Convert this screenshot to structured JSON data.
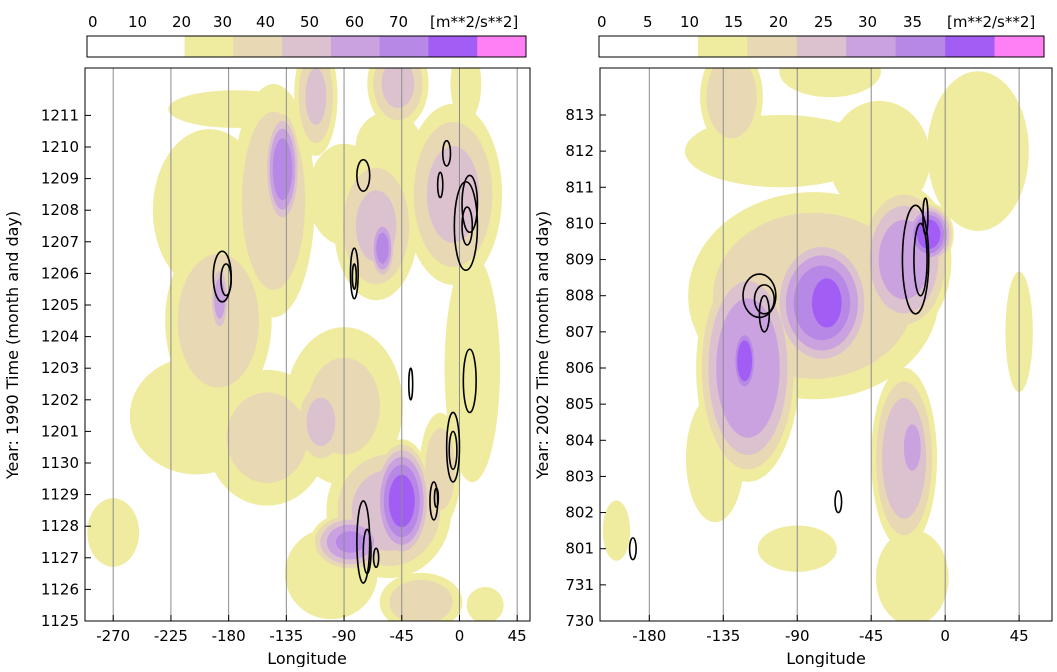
{
  "chart_data": [
    {
      "type": "heatmap",
      "title": "",
      "xlabel": "Longitude",
      "ylabel": "Year: 1990 Time (month and day)",
      "colorbar_unit": "[m**2/s**2]",
      "colorbar_ticks": [
        "0",
        "10",
        "20",
        "30",
        "40",
        "50",
        "60",
        "70"
      ],
      "colorbar_levels": [
        0,
        10,
        20,
        30,
        40,
        50,
        60,
        70,
        80
      ],
      "colors": [
        "#ffffff",
        "#ffffff",
        "#efeb9f",
        "#e9d8b4",
        "#dcc1cf",
        "#c9a2df",
        "#b888e7",
        "#a15df4",
        "#ff80f4"
      ],
      "x_ticks": [
        "-270",
        "-225",
        "-180",
        "-135",
        "-90",
        "-45",
        "0",
        "45"
      ],
      "x_tick_values": [
        -270,
        -225,
        -180,
        -135,
        -90,
        -45,
        0,
        45
      ],
      "xlim": [
        -292,
        55
      ],
      "y_ticks": [
        "1125",
        "1126",
        "1127",
        "1128",
        "1129",
        "1130",
        "1201",
        "1202",
        "1203",
        "1204",
        "1205",
        "1206",
        "1207",
        "1208",
        "1209",
        "1210",
        "1211"
      ],
      "ylim": [
        0,
        17.5
      ],
      "grid": "vertical lines at x ticks",
      "blobs": [
        {
          "x": -175,
          "y": 16.2,
          "rx": 70,
          "ry": 0.8,
          "v": 25
        },
        {
          "x": -195,
          "y": 13.0,
          "rx": 55,
          "ry": 3.2,
          "v": 28
        },
        {
          "x": -188,
          "y": 9.5,
          "rx": 45,
          "ry": 3.0,
          "v": 38
        },
        {
          "x": -187,
          "y": 10.2,
          "rx": 8,
          "ry": 1.2,
          "v": 55
        },
        {
          "x": -205,
          "y": 6.5,
          "rx": 70,
          "ry": 2.5,
          "v": 25
        },
        {
          "x": -150,
          "y": 5.8,
          "rx": 55,
          "ry": 2.5,
          "v": 32
        },
        {
          "x": -90,
          "y": 6.8,
          "rx": 55,
          "ry": 3.0,
          "v": 30
        },
        {
          "x": -108,
          "y": 6.3,
          "rx": 22,
          "ry": 1.5,
          "v": 42
        },
        {
          "x": -145,
          "y": 13.3,
          "rx": 35,
          "ry": 4.0,
          "v": 38
        },
        {
          "x": -138,
          "y": 14.3,
          "rx": 14,
          "ry": 1.8,
          "v": 68
        },
        {
          "x": -112,
          "y": 16.6,
          "rx": 18,
          "ry": 2.0,
          "v": 40
        },
        {
          "x": -90,
          "y": 13.5,
          "rx": 35,
          "ry": 2.0,
          "v": 28
        },
        {
          "x": -65,
          "y": 12.5,
          "rx": 35,
          "ry": 2.5,
          "v": 40
        },
        {
          "x": -60,
          "y": 11.8,
          "rx": 10,
          "ry": 1.0,
          "v": 65
        },
        {
          "x": -48,
          "y": 17.0,
          "rx": 25,
          "ry": 1.5,
          "v": 42
        },
        {
          "x": -55,
          "y": 15.0,
          "rx": 35,
          "ry": 1.5,
          "v": 25
        },
        {
          "x": -5,
          "y": 13.5,
          "rx": 40,
          "ry": 3.0,
          "v": 42
        },
        {
          "x": 5,
          "y": 17.0,
          "rx": 15,
          "ry": 1.5,
          "v": 28
        },
        {
          "x": 10,
          "y": 8.0,
          "rx": 30,
          "ry": 5.0,
          "v": 24
        },
        {
          "x": -55,
          "y": 3.5,
          "rx": 50,
          "ry": 2.2,
          "v": 45
        },
        {
          "x": -45,
          "y": 3.8,
          "rx": 22,
          "ry": 1.8,
          "v": 75
        },
        {
          "x": -85,
          "y": 2.5,
          "rx": 30,
          "ry": 0.9,
          "v": 60
        },
        {
          "x": -100,
          "y": 1.5,
          "rx": 45,
          "ry": 1.8,
          "v": 28
        },
        {
          "x": -15,
          "y": 4.8,
          "rx": 18,
          "ry": 2.0,
          "v": 35
        },
        {
          "x": -270,
          "y": 2.8,
          "rx": 28,
          "ry": 1.5,
          "v": 24
        },
        {
          "x": -30,
          "y": 0.6,
          "rx": 35,
          "ry": 1.0,
          "v": 38
        },
        {
          "x": 20,
          "y": 0.5,
          "rx": 20,
          "ry": 0.8,
          "v": 24
        },
        {
          "x": -250,
          "y": 14.5,
          "rx": 30,
          "ry": 0.8,
          "v": 0
        }
      ],
      "contours": [
        {
          "x": -185,
          "y": 10.9,
          "rx": 7,
          "ry": 0.8
        },
        {
          "x": -182,
          "y": 10.8,
          "rx": 4,
          "ry": 0.5
        },
        {
          "x": -82,
          "y": 11.0,
          "rx": 3,
          "ry": 0.8
        },
        {
          "x": -82,
          "y": 10.9,
          "rx": 1.5,
          "ry": 0.4
        },
        {
          "x": 5,
          "y": 12.5,
          "rx": 9,
          "ry": 1.4
        },
        {
          "x": 8,
          "y": 13.2,
          "rx": 6,
          "ry": 0.9
        },
        {
          "x": 6,
          "y": 12.5,
          "rx": 4,
          "ry": 0.6
        },
        {
          "x": -15,
          "y": 13.8,
          "rx": 2,
          "ry": 0.4
        },
        {
          "x": -10,
          "y": 14.8,
          "rx": 3,
          "ry": 0.4
        },
        {
          "x": -75,
          "y": 14.1,
          "rx": 5,
          "ry": 0.5
        },
        {
          "x": -38,
          "y": 7.5,
          "rx": 1.5,
          "ry": 0.5
        },
        {
          "x": 8,
          "y": 7.6,
          "rx": 5,
          "ry": 1.0
        },
        {
          "x": -5,
          "y": 5.5,
          "rx": 5,
          "ry": 1.1
        },
        {
          "x": -5,
          "y": 5.4,
          "rx": 3,
          "ry": 0.6
        },
        {
          "x": -20,
          "y": 3.8,
          "rx": 3,
          "ry": 0.6
        },
        {
          "x": -18,
          "y": 3.9,
          "rx": 1.5,
          "ry": 0.3
        },
        {
          "x": -75,
          "y": 2.5,
          "rx": 5,
          "ry": 1.3
        },
        {
          "x": -72,
          "y": 2.2,
          "rx": 3,
          "ry": 0.7
        },
        {
          "x": -65,
          "y": 2.0,
          "rx": 2,
          "ry": 0.3
        }
      ]
    },
    {
      "type": "heatmap",
      "title": "",
      "xlabel": "Longitude",
      "ylabel": "Year: 2002 Time (month and day)",
      "colorbar_unit": "[m**2/s**2]",
      "colorbar_ticks": [
        "0",
        "5",
        "10",
        "15",
        "20",
        "25",
        "30",
        "35"
      ],
      "colorbar_levels": [
        0,
        5,
        10,
        15,
        20,
        25,
        30,
        35,
        40
      ],
      "colors": [
        "#ffffff",
        "#ffffff",
        "#efeb9f",
        "#e9d8b4",
        "#dcc1cf",
        "#c9a2df",
        "#b888e7",
        "#a15df4",
        "#ff80f4"
      ],
      "x_ticks": [
        "-180",
        "-135",
        "-90",
        "-45",
        "0",
        "45"
      ],
      "x_tick_values": [
        -180,
        -135,
        -90,
        -45,
        0,
        45
      ],
      "xlim": [
        -210,
        65
      ],
      "y_ticks": [
        "730",
        "731",
        "801",
        "802",
        "803",
        "804",
        "805",
        "806",
        "807",
        "808",
        "809",
        "810",
        "811",
        "812",
        "813"
      ],
      "ylim": [
        0,
        15.3
      ],
      "grid": "vertical lines at x ticks",
      "blobs": [
        {
          "x": -130,
          "y": 14.5,
          "rx": 20,
          "ry": 1.5,
          "v": 18
        },
        {
          "x": -70,
          "y": 15.2,
          "rx": 35,
          "ry": 0.8,
          "v": 14
        },
        {
          "x": -100,
          "y": 13.0,
          "rx": 70,
          "ry": 1.2,
          "v": 12
        },
        {
          "x": -40,
          "y": 12.8,
          "rx": 35,
          "ry": 1.8,
          "v": 14
        },
        {
          "x": 20,
          "y": 13.0,
          "rx": 35,
          "ry": 2.5,
          "v": 14
        },
        {
          "x": -80,
          "y": 9.0,
          "rx": 80,
          "ry": 3.0,
          "v": 18
        },
        {
          "x": -120,
          "y": 7.0,
          "rx": 30,
          "ry": 3.0,
          "v": 28
        },
        {
          "x": -122,
          "y": 7.2,
          "rx": 8,
          "ry": 1.0,
          "v": 38
        },
        {
          "x": -75,
          "y": 8.8,
          "rx": 30,
          "ry": 1.8,
          "v": 32
        },
        {
          "x": -72,
          "y": 8.8,
          "rx": 16,
          "ry": 1.2,
          "v": 38
        },
        {
          "x": -25,
          "y": 10.0,
          "rx": 28,
          "ry": 2.0,
          "v": 25
        },
        {
          "x": -10,
          "y": 10.7,
          "rx": 14,
          "ry": 0.8,
          "v": 36
        },
        {
          "x": -140,
          "y": 4.5,
          "rx": 20,
          "ry": 2.0,
          "v": 14
        },
        {
          "x": -25,
          "y": 4.5,
          "rx": 20,
          "ry": 2.5,
          "v": 22
        },
        {
          "x": -20,
          "y": 4.8,
          "rx": 8,
          "ry": 1.0,
          "v": 28
        },
        {
          "x": -20,
          "y": 1.2,
          "rx": 25,
          "ry": 1.5,
          "v": 14
        },
        {
          "x": -200,
          "y": 2.5,
          "rx": 10,
          "ry": 1.0,
          "v": 12
        },
        {
          "x": -90,
          "y": 2.0,
          "rx": 30,
          "ry": 0.8,
          "v": 11
        },
        {
          "x": 45,
          "y": 8.0,
          "rx": 10,
          "ry": 2.0,
          "v": 12
        }
      ],
      "contours": [
        {
          "x": -113,
          "y": 9.0,
          "rx": 10,
          "ry": 0.6
        },
        {
          "x": -110,
          "y": 8.9,
          "rx": 6,
          "ry": 0.4
        },
        {
          "x": -110,
          "y": 8.5,
          "rx": 3,
          "ry": 0.5
        },
        {
          "x": -18,
          "y": 10.0,
          "rx": 8,
          "ry": 1.5
        },
        {
          "x": -15,
          "y": 10.0,
          "rx": 4,
          "ry": 1.0
        },
        {
          "x": -12,
          "y": 11.2,
          "rx": 1.5,
          "ry": 0.5
        },
        {
          "x": -65,
          "y": 3.3,
          "rx": 2,
          "ry": 0.3
        },
        {
          "x": -190,
          "y": 2.0,
          "rx": 2,
          "ry": 0.3
        }
      ]
    }
  ]
}
